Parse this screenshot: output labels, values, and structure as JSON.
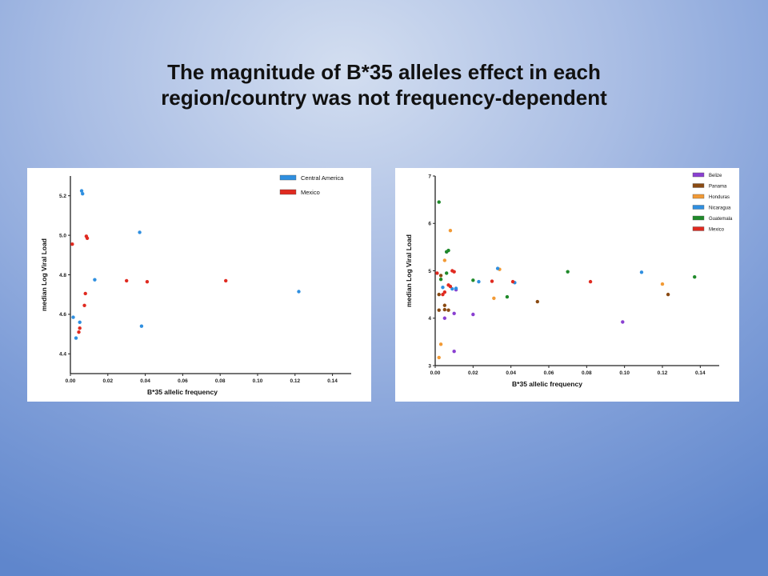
{
  "slide": {
    "title_line1": "The magnitude of B*35 alleles effect in each",
    "title_line2": "region/country was not frequency-dependent"
  },
  "chart_data": [
    {
      "type": "scatter",
      "title": "",
      "xlabel": "B*35 allelic frequency",
      "ylabel": "median Log Viral Load",
      "xlim": [
        0,
        0.15
      ],
      "ylim": [
        4.3,
        5.3
      ],
      "xticks": [
        "0.00",
        "0.02",
        "0.04",
        "0.06",
        "0.08",
        "0.10",
        "0.12",
        "0.14"
      ],
      "yticks": [
        "4.4",
        "4.6",
        "4.8",
        "5.0",
        "5.2"
      ],
      "legend_position": "top-right",
      "grid": false,
      "series": [
        {
          "name": "Central America",
          "color": "#2f8fe0",
          "points": [
            [
              0.006,
              5.225
            ],
            [
              0.0065,
              5.21
            ],
            [
              0.037,
              5.015
            ],
            [
              0.013,
              4.775
            ],
            [
              0.0015,
              4.585
            ],
            [
              0.005,
              4.56
            ],
            [
              0.038,
              4.54
            ],
            [
              0.003,
              4.48
            ],
            [
              0.122,
              4.715
            ]
          ]
        },
        {
          "name": "Mexico",
          "color": "#e02a20",
          "points": [
            [
              0.001,
              4.955
            ],
            [
              0.0085,
              4.995
            ],
            [
              0.009,
              4.985
            ],
            [
              0.008,
              4.705
            ],
            [
              0.0075,
              4.645
            ],
            [
              0.005,
              4.53
            ],
            [
              0.0045,
              4.51
            ],
            [
              0.03,
              4.77
            ],
            [
              0.041,
              4.765
            ],
            [
              0.083,
              4.77
            ]
          ]
        }
      ]
    },
    {
      "type": "scatter",
      "title": "",
      "xlabel": "B*35 allelic frequency",
      "ylabel": "median Log Viral Load",
      "xlim": [
        0,
        0.15
      ],
      "ylim": [
        3,
        7
      ],
      "xticks": [
        "0.00",
        "0.02",
        "0.04",
        "0.06",
        "0.08",
        "0.10",
        "0.12",
        "0.14"
      ],
      "yticks": [
        "3",
        "4",
        "5",
        "6",
        "7"
      ],
      "legend_position": "top-right",
      "grid": false,
      "series": [
        {
          "name": "Belize",
          "color": "#8a3fd1",
          "points": [
            [
              0.005,
              4.0
            ],
            [
              0.01,
              4.1
            ],
            [
              0.01,
              3.3
            ],
            [
              0.02,
              4.08
            ],
            [
              0.006,
              5.4
            ],
            [
              0.099,
              3.92
            ],
            [
              0.011,
              4.6
            ]
          ]
        },
        {
          "name": "Panama",
          "color": "#8a4a12",
          "points": [
            [
              0.002,
              4.5
            ],
            [
              0.002,
              4.17
            ],
            [
              0.005,
              4.27
            ],
            [
              0.005,
              4.18
            ],
            [
              0.007,
              4.17
            ],
            [
              0.054,
              4.35
            ],
            [
              0.123,
              4.5
            ],
            [
              0.003,
              4.9
            ]
          ]
        },
        {
          "name": "Honduras",
          "color": "#f29a35",
          "points": [
            [
              0.002,
              3.17
            ],
            [
              0.003,
              3.45
            ],
            [
              0.005,
              5.22
            ],
            [
              0.008,
              5.85
            ],
            [
              0.034,
              5.03
            ],
            [
              0.031,
              4.42
            ],
            [
              0.12,
              4.72
            ]
          ]
        },
        {
          "name": "Nicaragua",
          "color": "#2f8fe0",
          "points": [
            [
              0.004,
              4.65
            ],
            [
              0.009,
              4.62
            ],
            [
              0.033,
              5.05
            ],
            [
              0.023,
              4.77
            ],
            [
              0.042,
              4.75
            ],
            [
              0.109,
              4.97
            ],
            [
              0.011,
              4.63
            ]
          ]
        },
        {
          "name": "Guatemala",
          "color": "#1f8a2a",
          "points": [
            [
              0.002,
              6.45
            ],
            [
              0.006,
              5.4
            ],
            [
              0.007,
              5.43
            ],
            [
              0.003,
              4.82
            ],
            [
              0.02,
              4.8
            ],
            [
              0.038,
              4.45
            ],
            [
              0.07,
              4.98
            ],
            [
              0.137,
              4.87
            ],
            [
              0.006,
              4.95
            ]
          ]
        },
        {
          "name": "Mexico",
          "color": "#e02a20",
          "points": [
            [
              0.001,
              4.95
            ],
            [
              0.009,
              5.0
            ],
            [
              0.005,
              4.55
            ],
            [
              0.007,
              4.7
            ],
            [
              0.008,
              4.67
            ],
            [
              0.03,
              4.78
            ],
            [
              0.041,
              4.77
            ],
            [
              0.082,
              4.77
            ],
            [
              0.01,
              4.98
            ],
            [
              0.004,
              4.5
            ]
          ]
        }
      ]
    }
  ]
}
